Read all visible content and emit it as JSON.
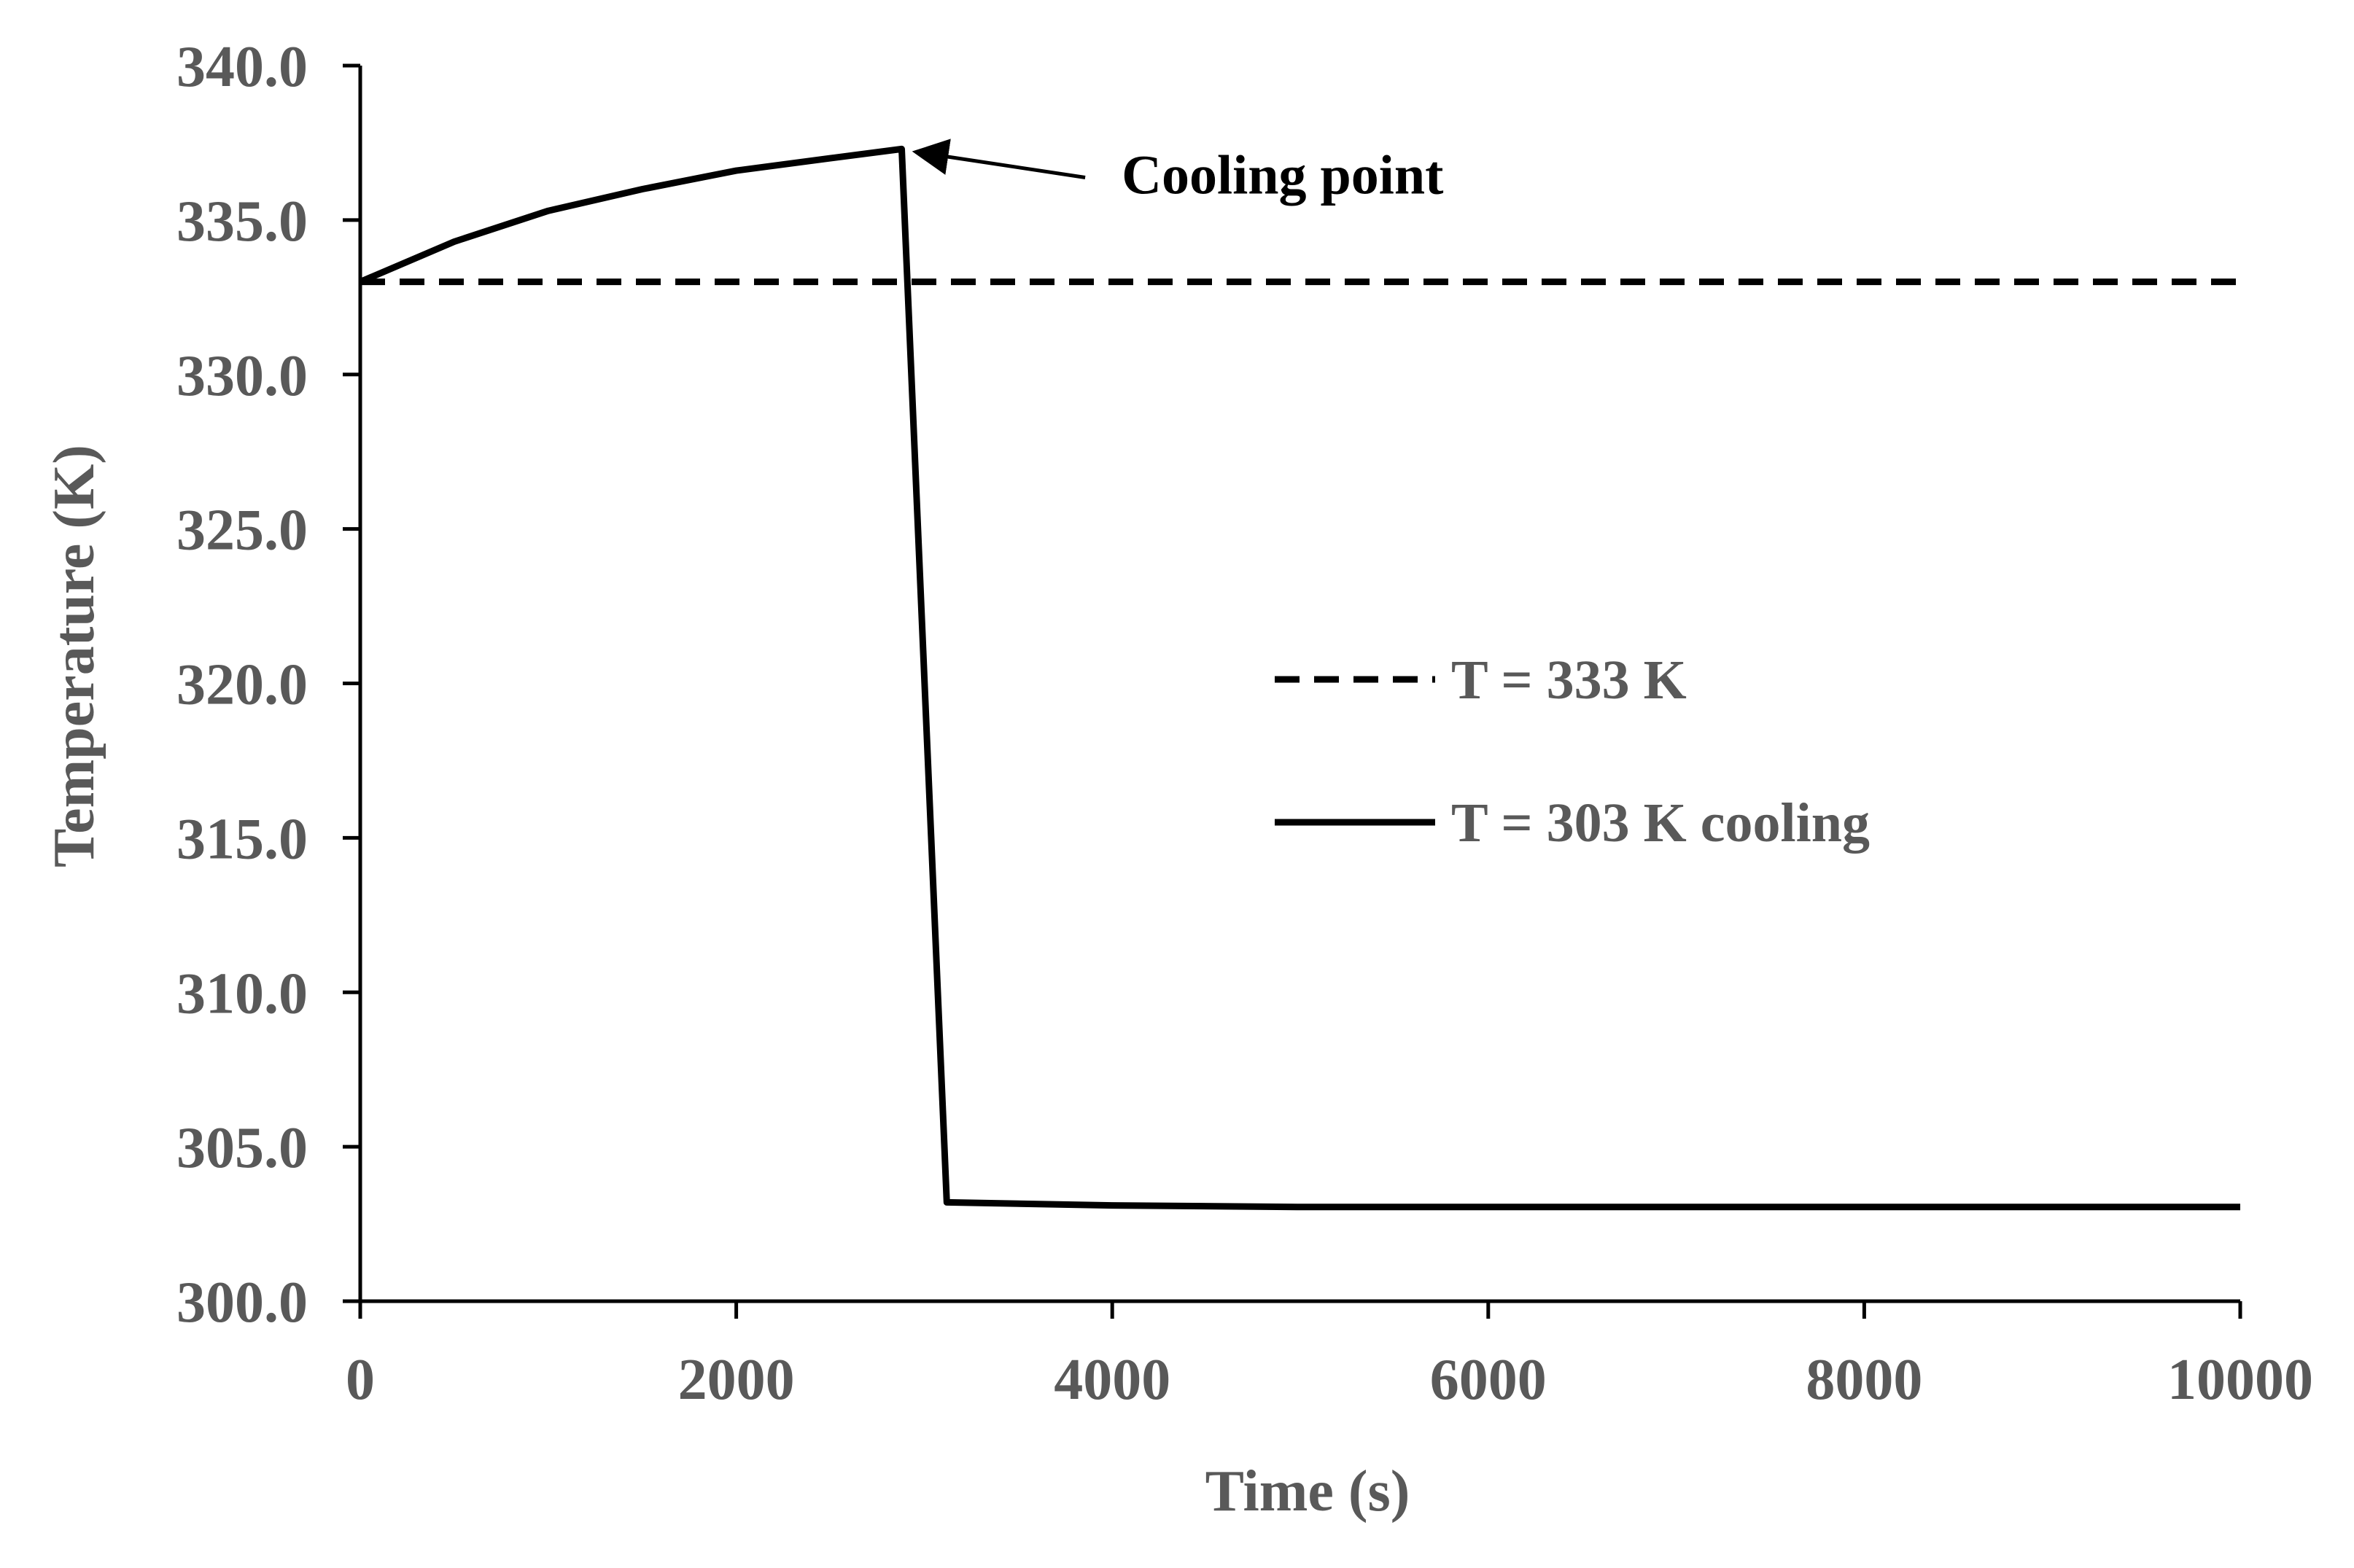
{
  "chart_data": {
    "type": "line",
    "title": "",
    "xlabel": "Time (s)",
    "ylabel": "Temperature (K)",
    "xlim": [
      0,
      10000
    ],
    "ylim": [
      300,
      340
    ],
    "xticks": [
      0,
      2000,
      4000,
      6000,
      8000,
      10000
    ],
    "xtick_labels": [
      "0",
      "2000",
      "4000",
      "6000",
      "8000",
      "10000"
    ],
    "yticks": [
      300,
      305,
      310,
      315,
      320,
      325,
      330,
      335,
      340
    ],
    "ytick_labels": [
      "300.0",
      "305.0",
      "310.0",
      "315.0",
      "320.0",
      "325.0",
      "330.0",
      "335.0",
      "340.0"
    ],
    "grid": false,
    "legend_position": "center-right",
    "series": [
      {
        "name": "T = 333 K",
        "style": "dashed",
        "color": "#000000",
        "x": [
          0,
          10000
        ],
        "y": [
          333.0,
          333.0
        ]
      },
      {
        "name": "T = 303 K cooling",
        "style": "solid",
        "color": "#000000",
        "x": [
          0,
          500,
          1000,
          1500,
          2000,
          2500,
          2880,
          3120,
          4000,
          5000,
          6000,
          7000,
          8000,
          9000,
          10000
        ],
        "y": [
          333.0,
          334.3,
          335.3,
          336.0,
          336.6,
          337.0,
          337.3,
          303.2,
          303.1,
          303.05,
          303.05,
          303.05,
          303.05,
          303.05,
          303.05
        ]
      }
    ],
    "annotations": [
      {
        "text": "Cooling point",
        "arrow_to": {
          "x": 2900,
          "y": 337.3
        },
        "text_at": {
          "x": 4050,
          "y": 336.0
        }
      }
    ]
  }
}
